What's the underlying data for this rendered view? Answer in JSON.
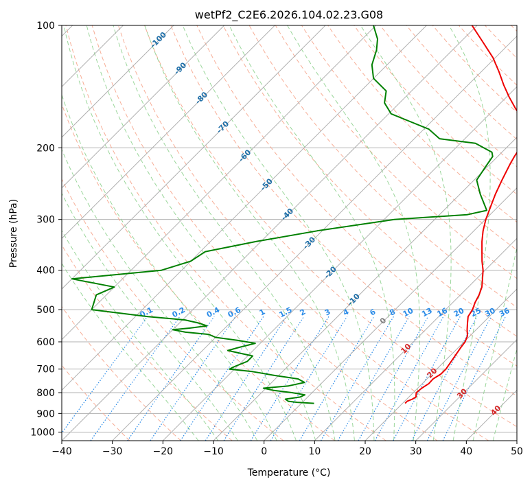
{
  "chart_data": {
    "type": "line",
    "subtype": "skew-T log-P diagram",
    "title": "wetPf2_C2E6.2026.104.02.23.G08",
    "xlabel": "Temperature (°C)",
    "ylabel": "Pressure (hPa)",
    "xlim": [
      -40,
      50
    ],
    "ylim": [
      1050,
      100
    ],
    "x_ticks": [
      -40,
      -30,
      -20,
      -10,
      0,
      10,
      20,
      30,
      40,
      50
    ],
    "x_tick_labels": [
      "−40",
      "−30",
      "−20",
      "−10",
      "0",
      "10",
      "20",
      "30",
      "40",
      "50"
    ],
    "y_ticks": [
      1000,
      900,
      800,
      700,
      600,
      500,
      400,
      300,
      200,
      100
    ],
    "y_tick_labels": [
      "1000",
      "900",
      "800",
      "700",
      "600",
      "500",
      "400",
      "300",
      "200",
      "100"
    ],
    "grid": true,
    "isotherm_labels": [
      "-100",
      "-90",
      "-80",
      "-70",
      "-60",
      "-50",
      "-40",
      "-30",
      "-20",
      "-10",
      "0",
      "10",
      "20",
      "30",
      "40"
    ],
    "mixing_ratio_labels": [
      "0.1",
      "0.2",
      "0.4",
      "0.6",
      "1",
      "1.5",
      "2",
      "3",
      "4",
      "6",
      "8",
      "10",
      "13",
      "16",
      "20",
      "25",
      "30",
      "36"
    ],
    "series": [
      {
        "name": "Temperature",
        "color": "#ee0000",
        "points": [
          [
            850,
            20.5
          ],
          [
            840,
            20.5
          ],
          [
            830,
            21.1
          ],
          [
            820,
            21.4
          ],
          [
            800,
            20.6
          ],
          [
            780,
            20.8
          ],
          [
            760,
            21.3
          ],
          [
            740,
            21.2
          ],
          [
            720,
            21.8
          ],
          [
            700,
            21.8
          ],
          [
            680,
            21.5
          ],
          [
            650,
            21.0
          ],
          [
            620,
            20.5
          ],
          [
            600,
            20.2
          ],
          [
            580,
            19.5
          ],
          [
            560,
            18.2
          ],
          [
            540,
            17.0
          ],
          [
            520,
            15.8
          ],
          [
            500,
            15.3
          ],
          [
            480,
            14.4
          ],
          [
            460,
            13.7
          ],
          [
            440,
            12.7
          ],
          [
            420,
            11.2
          ],
          [
            400,
            9.6
          ],
          [
            380,
            7.6
          ],
          [
            360,
            5.7
          ],
          [
            340,
            3.7
          ],
          [
            320,
            1.8
          ],
          [
            300,
            0.1
          ],
          [
            280,
            -1.4
          ],
          [
            260,
            -3.0
          ],
          [
            240,
            -4.5
          ],
          [
            220,
            -6.0
          ],
          [
            210,
            -6.7
          ],
          [
            200,
            -7.3
          ],
          [
            190,
            -8.0
          ],
          [
            180,
            -9.5
          ],
          [
            170,
            -12.5
          ],
          [
            160,
            -16.0
          ],
          [
            150,
            -19.5
          ],
          [
            140,
            -23.0
          ],
          [
            130,
            -26.5
          ],
          [
            120,
            -30.5
          ],
          [
            110,
            -35.5
          ],
          [
            100,
            -41.0
          ]
        ]
      },
      {
        "name": "Dewpoint",
        "color": "#008000",
        "points": [
          [
            850,
            2.5
          ],
          [
            845,
            -1.0
          ],
          [
            840,
            -3.0
          ],
          [
            830,
            -4.0
          ],
          [
            820,
            -1.5
          ],
          [
            810,
            -1.0
          ],
          [
            800,
            -4.0
          ],
          [
            790,
            -8.0
          ],
          [
            780,
            -10.5
          ],
          [
            770,
            -6.0
          ],
          [
            755,
            -3.5
          ],
          [
            740,
            -5.5
          ],
          [
            725,
            -11.0
          ],
          [
            710,
            -16.0
          ],
          [
            700,
            -21.0
          ],
          [
            690,
            -20.5
          ],
          [
            670,
            -19.0
          ],
          [
            650,
            -19.0
          ],
          [
            640,
            -22.0
          ],
          [
            630,
            -25.0
          ],
          [
            620,
            -23.5
          ],
          [
            605,
            -21.0
          ],
          [
            595,
            -25.0
          ],
          [
            585,
            -30.0
          ],
          [
            575,
            -32.0
          ],
          [
            568,
            -37.0
          ],
          [
            560,
            -40.0
          ],
          [
            555,
            -37.0
          ],
          [
            548,
            -34.0
          ],
          [
            540,
            -36.0
          ],
          [
            530,
            -39.5
          ],
          [
            520,
            -47.5
          ],
          [
            500,
            -60.0
          ],
          [
            460,
            -62.0
          ],
          [
            440,
            -60.0
          ],
          [
            420,
            -70.0
          ],
          [
            400,
            -54.0
          ],
          [
            380,
            -50.0
          ],
          [
            360,
            -49.0
          ],
          [
            340,
            -41.0
          ],
          [
            320,
            -31.0
          ],
          [
            300,
            -18.0
          ],
          [
            292,
            -4.5
          ],
          [
            285,
            -1.5
          ],
          [
            260,
            -6.0
          ],
          [
            240,
            -9.5
          ],
          [
            220,
            -10.5
          ],
          [
            210,
            -11.0
          ],
          [
            205,
            -12.0
          ],
          [
            195,
            -17.0
          ],
          [
            190,
            -25.0
          ],
          [
            180,
            -29.0
          ],
          [
            172,
            -34.5
          ],
          [
            165,
            -39.5
          ],
          [
            155,
            -43.0
          ],
          [
            145,
            -45.0
          ],
          [
            135,
            -50.0
          ],
          [
            125,
            -53.0
          ],
          [
            115,
            -55.0
          ],
          [
            108,
            -57.0
          ],
          [
            100,
            -60.5
          ]
        ]
      }
    ]
  },
  "colors": {
    "temperature": "#ee0000",
    "dewpoint": "#008000",
    "isotherm_label": "#1f6fa8",
    "mixing_ratio": "#2a8be8",
    "dry_adiabat": "#f6a58c",
    "moist_adiabat": "#8fd18f",
    "hot_label": "#d62728",
    "zero_label": "#808080",
    "grid": "#b0b0b0"
  }
}
